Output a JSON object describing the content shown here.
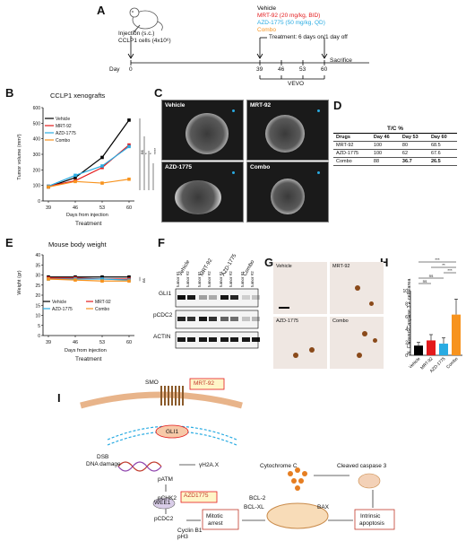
{
  "panels": {
    "a": "A",
    "b": "B",
    "c": "C",
    "d": "D",
    "e": "E",
    "f": "F",
    "g": "G",
    "h": "H",
    "i": "I"
  },
  "panel_a": {
    "injection_line1": "Injection (s.c.)",
    "injection_line2": "CCLP1 cells (4x10⁶)",
    "legend": [
      {
        "label": "Vehicle",
        "color": "#000000"
      },
      {
        "label": "MRT-92 (20 mg/kg, BID)",
        "color": "#e31a1c"
      },
      {
        "label": "AZD-1775 (50 mg/kg, QD)",
        "color": "#29abe2"
      },
      {
        "label": "Combo",
        "color": "#f7931e"
      }
    ],
    "treatment": "Treatment: 6 days on/1 day off",
    "day_label": "Day",
    "days": [
      "0",
      "39",
      "46",
      "53",
      "60"
    ],
    "sacrifice": "Sacrifice",
    "vevo": "VEVO"
  },
  "chart_data": [
    {
      "type": "line",
      "title": "CCLP1 xenografts",
      "xlabel": "Days from injection",
      "xlabel2": "Treatment",
      "ylabel": "Tumor volume (mm³)",
      "x": [
        39,
        46,
        53,
        60
      ],
      "ylim": [
        0,
        600
      ],
      "yticks": [
        0,
        100,
        200,
        300,
        400,
        500,
        600
      ],
      "series": [
        {
          "name": "Vehicle",
          "color": "#000000",
          "marker": "square",
          "values": [
            90,
            150,
            280,
            520
          ]
        },
        {
          "name": "MRT-92",
          "color": "#e31a1c",
          "marker": "triangle",
          "values": [
            95,
            130,
            215,
            360
          ]
        },
        {
          "name": "AZD-1775",
          "color": "#29abe2",
          "marker": "diamond",
          "values": [
            95,
            165,
            225,
            350
          ]
        },
        {
          "name": "Combo",
          "color": "#f7931e",
          "marker": "circle",
          "values": [
            90,
            125,
            115,
            140
          ]
        }
      ],
      "significance": [
        "ns",
        "*",
        "*",
        "****"
      ]
    },
    {
      "type": "line",
      "title": "Mouse body weight",
      "xlabel": "Days from injection",
      "xlabel2": "Treatment",
      "ylabel": "Weight (gr)",
      "x": [
        39,
        46,
        53,
        60
      ],
      "ylim": [
        0,
        40
      ],
      "yticks": [
        0,
        5,
        10,
        15,
        20,
        25,
        30,
        35,
        40
      ],
      "series": [
        {
          "name": "Vehicle",
          "color": "#000000",
          "values": [
            29,
            29,
            29,
            29
          ]
        },
        {
          "name": "MRT-92",
          "color": "#e31a1c",
          "values": [
            28.5,
            28.5,
            28,
            28
          ]
        },
        {
          "name": "AZD-1775",
          "color": "#29abe2",
          "values": [
            28,
            28,
            28,
            27.5
          ]
        },
        {
          "name": "Combo",
          "color": "#f7931e",
          "values": [
            28,
            27.5,
            27,
            27
          ]
        }
      ],
      "significance": [
        "ns"
      ]
    },
    {
      "type": "bar",
      "ylabel": "N. Cleaved Caspase 3 + cells/area",
      "categories": [
        "Vehicle",
        "MRT-92",
        "AZD-1775",
        "Combo"
      ],
      "values": [
        1.5,
        2.3,
        1.8,
        6.3
      ],
      "errors": [
        0.5,
        0.9,
        0.9,
        2.4
      ],
      "colors": [
        "#000000",
        "#e31a1c",
        "#29abe2",
        "#f7931e"
      ],
      "ylim": [
        0,
        10
      ],
      "yticks": [
        0,
        2,
        4,
        6,
        8,
        10
      ],
      "significance": [
        "ns",
        "ns",
        "***",
        "**",
        "***"
      ]
    }
  ],
  "panel_c": {
    "images": [
      "Vehicle",
      "MRT-92",
      "AZD-1775",
      "Combo"
    ]
  },
  "panel_d": {
    "header": "T/C %",
    "columns": [
      "Drugs",
      "Day 46",
      "Day 53",
      "Day 60"
    ],
    "rows": [
      [
        "MRT-92",
        "100",
        "80",
        "68.5"
      ],
      [
        "AZD-1775",
        "100",
        "62",
        "67.6"
      ],
      [
        "Combo",
        "88",
        "36.7",
        "26.5"
      ]
    ]
  },
  "panel_f": {
    "groups": [
      "Vehicle",
      "MRT-92",
      "AZD-1775",
      "Combo"
    ],
    "lanes": [
      "tumor #1",
      "tumor #2"
    ],
    "proteins": [
      "GLI1",
      "pCDC2",
      "ACTIN"
    ]
  },
  "panel_g": {
    "images": [
      "Vehicle",
      "MRT-92",
      "AZD-1775",
      "Combo"
    ]
  },
  "panel_i": {
    "smo": "SMO",
    "mrt92": "MRT-92",
    "gli1": "GLI1",
    "dsb": "DSB",
    "dna_damage": "DNA damage",
    "h2ax": "γH2A.X",
    "patm": "pATM",
    "pchk2": "pCHK2",
    "wee1": "WEE1",
    "azd1775": "AZD1775",
    "pcdc2": "pCDC2",
    "cyclin": "Cyclin B1",
    "ph3": "pH3",
    "mitotic1": "Mitotic",
    "mitotic2": "arrest",
    "cytc": "Cytochrome C",
    "casp3": "Cleaved caspase 3",
    "bcl2": "BCL-2",
    "bclxl": "BCL-XL",
    "bax": "BAX",
    "intrinsic1": "Intrinsic",
    "intrinsic2": "apoptosis"
  }
}
